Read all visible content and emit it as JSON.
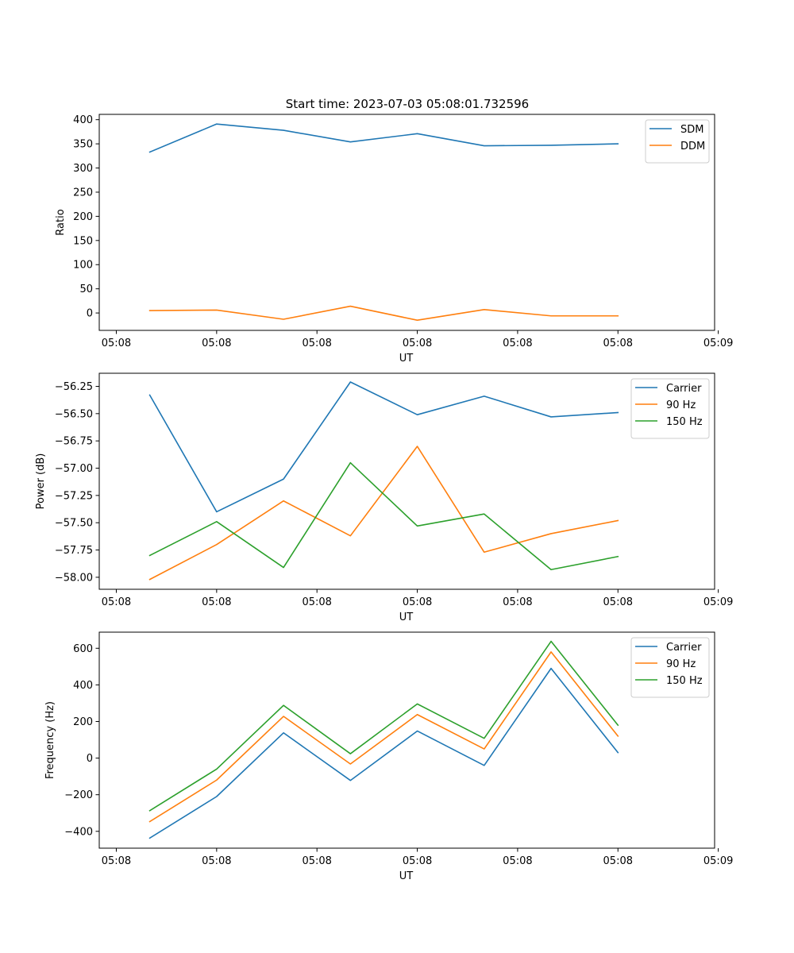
{
  "figure_title": "Start time: 2023-07-03 05:08:01.732596",
  "colors": {
    "blue": "#1f77b4",
    "orange": "#ff7f0e",
    "green": "#2ca02c"
  },
  "chart_data": [
    {
      "type": "line",
      "title": "Start time: 2023-07-03 05:08:01.732596",
      "xlabel": "UT",
      "ylabel": "Ratio",
      "x": [
        0,
        1,
        2,
        3,
        4,
        5,
        6,
        7
      ],
      "xlim": [
        -0.755,
        8.445
      ],
      "xticks": [
        -0.5,
        1.0,
        2.5,
        4.0,
        5.5,
        7.0,
        8.5
      ],
      "xtick_labels": [
        "05:08",
        "05:08",
        "05:08",
        "05:08",
        "05:08",
        "05:08",
        "05:09"
      ],
      "ylim": [
        -36,
        411
      ],
      "yticks": [
        0,
        50,
        100,
        150,
        200,
        250,
        300,
        350,
        400
      ],
      "ytick_labels": [
        "0",
        "50",
        "100",
        "150",
        "200",
        "250",
        "300",
        "350",
        "400"
      ],
      "legend": "top-right",
      "series": [
        {
          "name": "SDM",
          "color": "#1f77b4",
          "values": [
            333,
            391,
            378,
            354,
            371,
            346,
            347,
            350
          ]
        },
        {
          "name": "DDM",
          "color": "#ff7f0e",
          "values": [
            5,
            6,
            -13,
            14,
            -15,
            7,
            -6,
            -6
          ]
        }
      ]
    },
    {
      "type": "line",
      "xlabel": "UT",
      "ylabel": "Power (dB)",
      "x": [
        0,
        1,
        2,
        3,
        4,
        5,
        6,
        7
      ],
      "xlim": [
        -0.755,
        8.445
      ],
      "xticks": [
        -0.5,
        1.0,
        2.5,
        4.0,
        5.5,
        7.0,
        8.5
      ],
      "xtick_labels": [
        "05:08",
        "05:08",
        "05:08",
        "05:08",
        "05:08",
        "05:08",
        "05:09"
      ],
      "ylim": [
        -58.11,
        -56.13
      ],
      "yticks": [
        -58.0,
        -57.75,
        -57.5,
        -57.25,
        -57.0,
        -56.75,
        -56.5,
        -56.25
      ],
      "ytick_labels": [
        "−58.00",
        "−57.75",
        "−57.50",
        "−57.25",
        "−57.00",
        "−56.75",
        "−56.50",
        "−56.25"
      ],
      "legend": "top-right",
      "series": [
        {
          "name": "Carrier",
          "color": "#1f77b4",
          "values": [
            -56.33,
            -57.4,
            -57.1,
            -56.21,
            -56.51,
            -56.34,
            -56.53,
            -56.49
          ]
        },
        {
          "name": "90 Hz",
          "color": "#ff7f0e",
          "values": [
            -58.02,
            -57.7,
            -57.3,
            -57.62,
            -56.8,
            -57.77,
            -57.6,
            -57.48
          ]
        },
        {
          "name": "150 Hz",
          "color": "#2ca02c",
          "values": [
            -57.8,
            -57.49,
            -57.91,
            -56.95,
            -57.53,
            -57.42,
            -57.93,
            -57.81
          ]
        }
      ]
    },
    {
      "type": "line",
      "xlabel": "UT",
      "ylabel": "Frequency (Hz)",
      "x": [
        0,
        1,
        2,
        3,
        4,
        5,
        6,
        7
      ],
      "xlim": [
        -0.755,
        8.445
      ],
      "xticks": [
        -0.5,
        1.0,
        2.5,
        4.0,
        5.5,
        7.0,
        8.5
      ],
      "xtick_labels": [
        "05:08",
        "05:08",
        "05:08",
        "05:08",
        "05:08",
        "05:08",
        "05:09"
      ],
      "ylim": [
        -492,
        688
      ],
      "yticks": [
        -400,
        -200,
        0,
        200,
        400,
        600
      ],
      "ytick_labels": [
        "−400",
        "−200",
        "0",
        "200",
        "400",
        "600"
      ],
      "legend": "top-right",
      "series": [
        {
          "name": "Carrier",
          "color": "#1f77b4",
          "values": [
            -437,
            -210,
            138,
            -122,
            148,
            -40,
            490,
            30
          ]
        },
        {
          "name": "90 Hz",
          "color": "#ff7f0e",
          "values": [
            -347,
            -120,
            228,
            -32,
            238,
            50,
            580,
            120
          ]
        },
        {
          "name": "150 Hz",
          "color": "#2ca02c",
          "values": [
            -287,
            -60,
            288,
            24,
            296,
            108,
            638,
            180
          ]
        }
      ]
    }
  ]
}
